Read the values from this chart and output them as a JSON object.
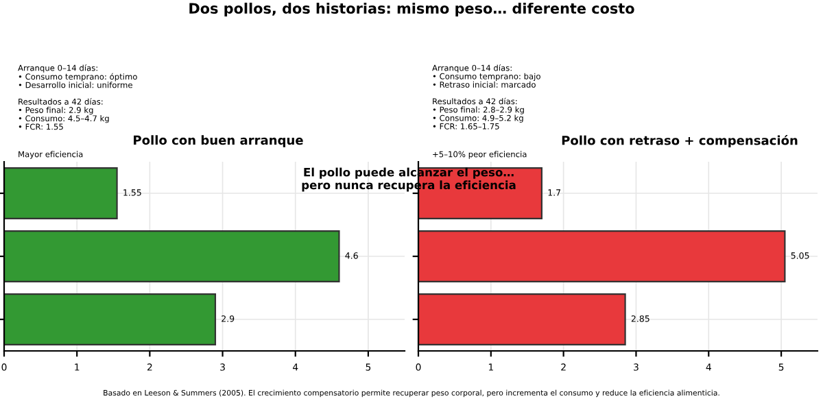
{
  "chart_data": [
    {
      "type": "bar",
      "orientation": "horizontal",
      "title": "Pollo con buen arranque",
      "categories": [
        null,
        null,
        null
      ],
      "series": [
        {
          "color": "#339933",
          "values": [
            1.55,
            4.6,
            2.9
          ]
        }
      ],
      "xlim": [
        0,
        5.5
      ],
      "xticks": [
        0,
        1,
        2,
        3,
        4,
        5
      ],
      "grid": true,
      "tick_labels": "x",
      "data_labels": true,
      "annotations": [
        "Dos pollos, dos historias: mismo peso… diferente costo",
        "Arranque 0–14 días:\n• Consumo temprano: óptimo\n• Desarrollo inicial: uniforme\n\nResultados a 42 días:\n• Peso final: 2.9 kg\n• Consumo: 4.5–4.7 kg\n• FCR: 1.55",
        "Mayor eficiencia",
        "El pollo puede alcanzar el peso…\npero nunca recupera la eficiencia",
        "Basado en Leeson & Summers (2005). El crecimiento compensatorio permite recuperar peso corporal, pero incrementa el consumo y reduce la eficiencia alimenticia."
      ]
    },
    {
      "type": "bar",
      "orientation": "horizontal",
      "title": "Pollo con retraso + compensación",
      "categories": [
        null,
        null,
        null
      ],
      "series": [
        {
          "color": "#e8393c",
          "values": [
            1.7,
            5.05,
            2.85
          ]
        }
      ],
      "xlim": [
        0,
        5.5
      ],
      "xticks": [
        0,
        1,
        2,
        3,
        4,
        5
      ],
      "grid": true,
      "tick_labels": "x",
      "data_labels": true,
      "annotations": [
        "Arranque 0–14 días:\n• Consumo temprano: bajo\n• Retraso inicial: marcado\n\nResultados a 42 días:\n• Peso final: 2.8–2.9 kg\n• Consumo: 4.9–5.2 kg\n• FCR: 1.65–1.75",
        "+5–10% peor eficiencia"
      ]
    }
  ]
}
